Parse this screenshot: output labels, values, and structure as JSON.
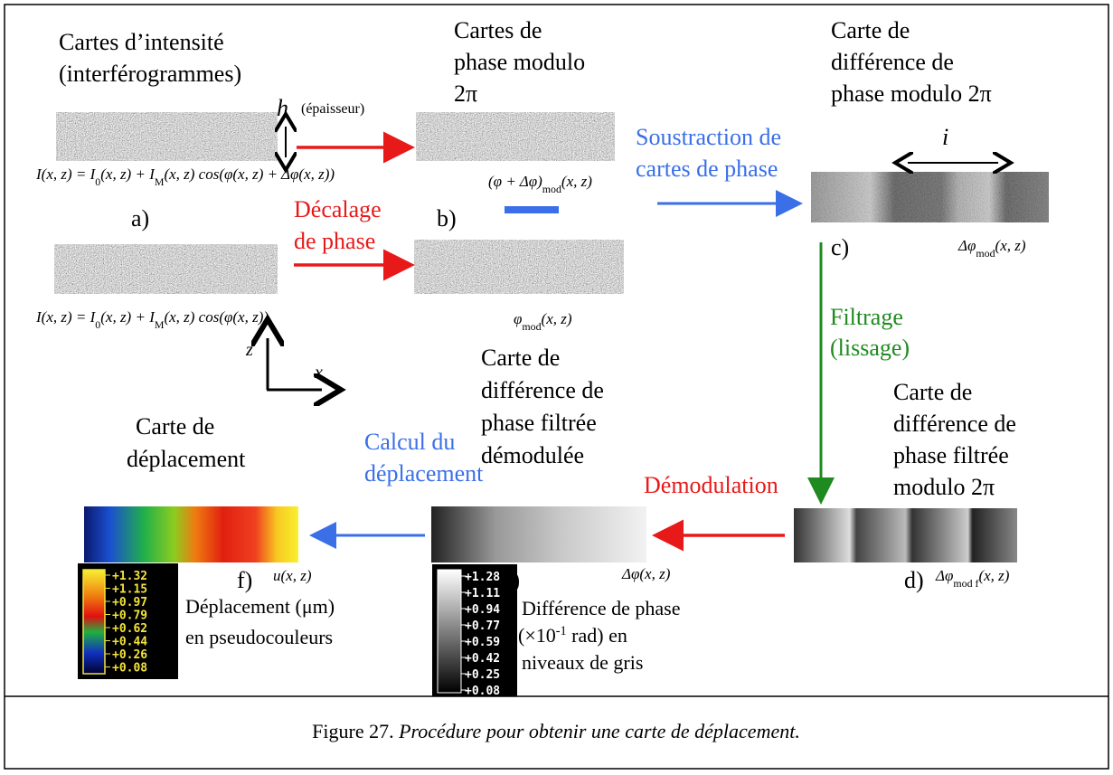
{
  "panel_a": {
    "title": [
      "Cartes d’intensité",
      "(interférogrammes)"
    ],
    "thickness_symbol": "h",
    "thickness_label": "(épaisseur)",
    "label": "a)",
    "formula_top": [
      "I(x, z) = I",
      "0",
      "(x, z) + I",
      "M",
      "(x, z) cos(φ(x, z) + Δφ(x, z))"
    ],
    "formula_bottom": [
      "I(x, z) = I",
      "0",
      "(x, z) + I",
      "M",
      "(x, z) cos(φ(x, z))"
    ]
  },
  "step_phase_shift": [
    "Décalage",
    "de phase"
  ],
  "panel_b": {
    "title": [
      "Cartes de",
      "phase modulo",
      "2π"
    ],
    "label": "b)",
    "formula_top": [
      "(φ + Δφ)",
      "mod",
      "(x, z)"
    ],
    "formula_bottom": [
      "φ",
      "mod",
      "(x, z)"
    ]
  },
  "step_subtraction": [
    "Soustraction de",
    "cartes de phase"
  ],
  "panel_c": {
    "title": [
      "Carte de",
      "différence de",
      "phase modulo 2π"
    ],
    "width_symbol": "i",
    "label": "c)",
    "formula": [
      "Δφ",
      "mod",
      "(x, z)"
    ]
  },
  "step_filter": [
    "Filtrage",
    "(lissage)"
  ],
  "panel_d": {
    "title": [
      "Carte de",
      "différence de",
      "phase filtrée",
      "modulo 2π"
    ],
    "label": "d)",
    "formula": [
      "Δφ",
      "mod f",
      "(x, z)"
    ]
  },
  "step_demodulation": "Démodulation",
  "panel_e": {
    "title": [
      "Carte de",
      "différence de",
      "phase filtrée",
      "démodulée"
    ],
    "label": "e)",
    "formula": [
      "Δφ(x, z)"
    ],
    "colorbar": [
      "+1.28",
      "+1.11",
      "+0.94",
      "+0.77",
      "+0.59",
      "+0.42",
      "+0.25",
      "+0.08"
    ],
    "colorbar_caption": {
      "line1": "Différence de phase",
      "line2": [
        "(×10",
        "-1",
        " rad) en"
      ],
      "line3": "niveaux de gris"
    }
  },
  "step_calculation": [
    "Calcul du",
    "déplacement"
  ],
  "panel_f": {
    "title": [
      "Carte de",
      "déplacement"
    ],
    "label": "f)",
    "formula": [
      "u(x, z)"
    ],
    "colorbar": [
      "+1.32",
      "+1.15",
      "+0.97",
      "+0.79",
      "+0.62",
      "+0.44",
      "+0.26",
      "+0.08"
    ],
    "colorbar_caption": [
      "Déplacement (μm)",
      "en pseudocouleurs"
    ]
  },
  "axes": {
    "z": "z",
    "x": "x"
  },
  "caption": {
    "number": "Figure 27. ",
    "text": "Procédure pour obtenir une carte de déplacement."
  }
}
